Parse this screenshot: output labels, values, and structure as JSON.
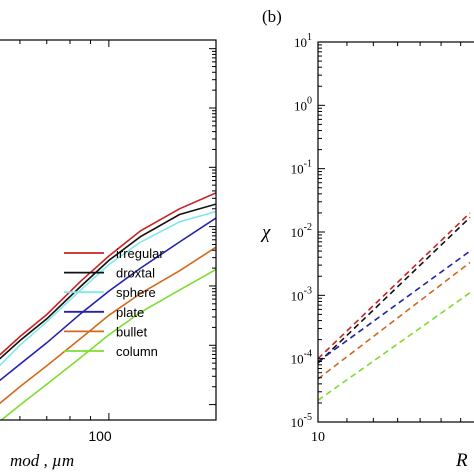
{
  "chart_data": [
    {
      "type": "line",
      "panel_label": "",
      "title": "",
      "xlabel_tail": "mod , µm",
      "ylabel": "",
      "xscale": "log",
      "yscale": "log",
      "xlim": [
        52,
        185
      ],
      "ylim": [
        5.5e-06,
        14
      ],
      "x_tick_labels": [
        "100"
      ],
      "x_tick_values": [
        100
      ],
      "legend_position": "lower-right",
      "series": [
        {
          "name": "irregular",
          "color": "#cc2222",
          "line_style": "solid",
          "x": [
            52,
            60,
            70,
            85,
            100,
            120,
            150,
            185
          ],
          "y": [
            5.8e-05,
            0.00014,
            0.00033,
            0.0012,
            0.0032,
            0.0085,
            0.02,
            0.037
          ]
        },
        {
          "name": "droxtal",
          "color": "#111111",
          "line_style": "solid",
          "x": [
            52,
            60,
            70,
            85,
            100,
            120,
            150,
            185
          ],
          "y": [
            5e-05,
            0.00012,
            0.00028,
            0.00098,
            0.0027,
            0.0068,
            0.016,
            0.024
          ]
        },
        {
          "name": "sphere",
          "color": "#80e8e8",
          "line_style": "solid",
          "x": [
            52,
            60,
            70,
            85,
            100,
            120,
            150,
            185
          ],
          "y": [
            3.8e-05,
            0.0001,
            0.00025,
            0.00085,
            0.0023,
            0.0055,
            0.012,
            0.018
          ]
        },
        {
          "name": "plate",
          "color": "#2222aa",
          "line_style": "solid",
          "x": [
            52,
            60,
            70,
            85,
            100,
            120,
            150,
            185
          ],
          "y": [
            2.2e-05,
            4.8e-05,
            0.00011,
            0.00034,
            0.00082,
            0.002,
            0.0055,
            0.014
          ]
        },
        {
          "name": "bullet",
          "color": "#d2691e",
          "line_style": "solid",
          "x": [
            52,
            60,
            70,
            85,
            100,
            120,
            150,
            185
          ],
          "y": [
            9e-06,
            2e-05,
            4.5e-05,
            0.00013,
            0.00032,
            0.00075,
            0.0018,
            0.0045
          ]
        },
        {
          "name": "column",
          "color": "#7ddd30",
          "line_style": "solid",
          "x": [
            52,
            60,
            70,
            85,
            100,
            120,
            150,
            185
          ],
          "y": [
            4.5e-06,
            9.8e-06,
            2.2e-05,
            6.2e-05,
            0.00015,
            0.00036,
            0.00085,
            0.0019
          ]
        }
      ]
    },
    {
      "type": "line",
      "panel_label": "(b)",
      "title": "",
      "ylabel": "χ",
      "xlabel_partial": "R",
      "xscale": "log",
      "yscale": "log",
      "xlim": [
        10,
        16.5
      ],
      "ylim": [
        1e-05,
        10
      ],
      "x_tick_labels": [
        "10"
      ],
      "x_tick_values": [
        10
      ],
      "y_tick_labels": [
        {
          "base": "10",
          "exp": "1"
        },
        {
          "base": "10",
          "exp": "0"
        },
        {
          "base": "10",
          "exp": "-1"
        },
        {
          "base": "10",
          "exp": "-2"
        },
        {
          "base": "10",
          "exp": "-3"
        },
        {
          "base": "10",
          "exp": "-4"
        },
        {
          "base": "10",
          "exp": "-5"
        }
      ],
      "y_tick_values": [
        10,
        1,
        0.1,
        0.01,
        0.001,
        0.0001,
        1e-05
      ],
      "series": [
        {
          "color": "#cc2222",
          "line_style": "dashed",
          "x": [
            10,
            16.5
          ],
          "y": [
            0.0001,
            0.02
          ]
        },
        {
          "color": "#111111",
          "line_style": "dashed",
          "x": [
            10,
            16.5
          ],
          "y": [
            8.5e-05,
            0.017
          ]
        },
        {
          "color": "#2222aa",
          "line_style": "dashed",
          "x": [
            10,
            16.5
          ],
          "y": [
            9e-05,
            0.005
          ]
        },
        {
          "color": "#d2691e",
          "line_style": "dashed",
          "x": [
            10,
            16.5
          ],
          "y": [
            4.8e-05,
            0.0033
          ]
        },
        {
          "color": "#7ddd30",
          "line_style": "dashed",
          "x": [
            10,
            16.5
          ],
          "y": [
            2.2e-05,
            0.0011
          ]
        }
      ]
    }
  ]
}
